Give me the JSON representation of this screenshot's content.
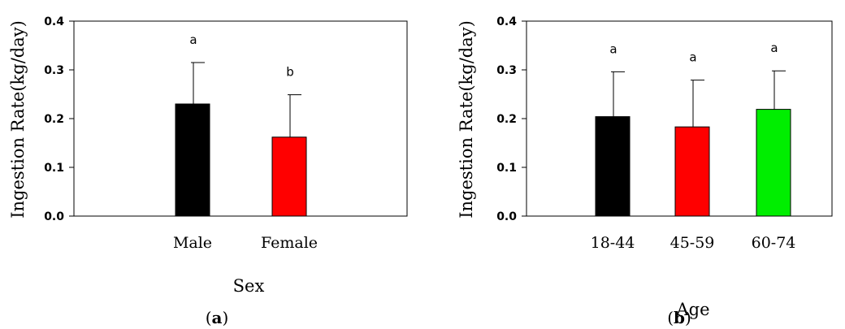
{
  "chart_data": [
    {
      "type": "bar",
      "panel": "a",
      "categories": [
        "Male",
        "Female"
      ],
      "values": [
        0.23,
        0.162
      ],
      "errors": [
        0.085,
        0.087
      ],
      "significance": [
        "a",
        "b"
      ],
      "colors": [
        "#000000",
        "#ff0000"
      ],
      "xlabel": "Sex",
      "ylabel": "Ingestion Rate(kg/day)",
      "ylim": [
        0,
        0.4
      ],
      "yticks": [
        "0.0",
        "0.1",
        "0.2",
        "0.3",
        "0.4"
      ],
      "grid": false
    },
    {
      "type": "bar",
      "panel": "b",
      "categories": [
        "18-44",
        "45-59",
        "60-74"
      ],
      "values": [
        0.204,
        0.183,
        0.219
      ],
      "errors": [
        0.092,
        0.096,
        0.079
      ],
      "significance": [
        "a",
        "a",
        "a"
      ],
      "colors": [
        "#000000",
        "#ff0000",
        "#00ee00"
      ],
      "xlabel": "Age",
      "ylabel": "Ingestion Rate(kg/day)",
      "ylim": [
        0,
        0.4
      ],
      "yticks": [
        "0.0",
        "0.1",
        "0.2",
        "0.3",
        "0.4"
      ],
      "grid": false
    }
  ],
  "captions": [
    {
      "open": "(",
      "letter": "a",
      "close": ")"
    },
    {
      "open": "(",
      "letter": "b",
      "close": ")"
    }
  ]
}
